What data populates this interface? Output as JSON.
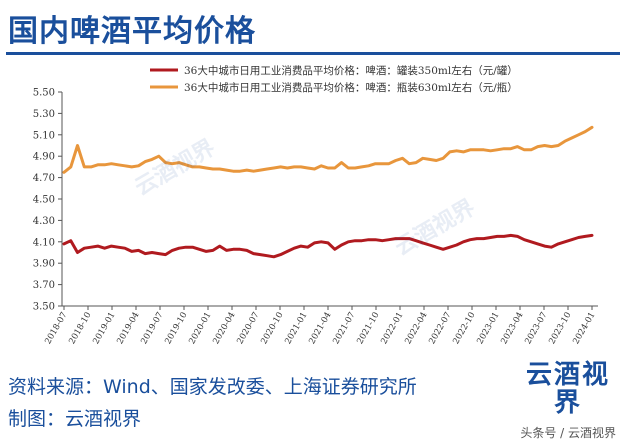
{
  "header": {
    "title": "国内啤酒平均价格"
  },
  "footer": {
    "source": "资料来源：Wind、国家发改委、上海证券研究所",
    "made_by": "制图：云酒视界",
    "logo_text": "云酒视界",
    "credit": "头条号 / 云酒视界"
  },
  "watermark_text": "云酒视界",
  "chart_data": {
    "type": "line",
    "y_ticks": [
      "3.50",
      "3.70",
      "3.90",
      "4.10",
      "4.30",
      "4.50",
      "4.70",
      "4.90",
      "5.10",
      "5.30",
      "5.50"
    ],
    "ylim": [
      3.5,
      5.5
    ],
    "x_ticks": [
      "2018-07",
      "2018-10",
      "2019-01",
      "2019-04",
      "2019-07",
      "2019-10",
      "2020-01",
      "2020-04",
      "2020-07",
      "2020-10",
      "2021-01",
      "2021-04",
      "2021-07",
      "2021-10",
      "2022-01",
      "2022-04",
      "2022-07",
      "2022-10",
      "2023-01",
      "2023-04",
      "2023-07",
      "2023-10",
      "2024-01"
    ],
    "grid": false,
    "legend_position": "top",
    "series": [
      {
        "name": "36大中城市日用工业消费品平均价格：啤酒：罐装350ml左右（元/罐）",
        "color": "#b01a1f",
        "values": [
          4.08,
          4.11,
          4.0,
          4.04,
          4.05,
          4.06,
          4.04,
          4.06,
          4.05,
          4.04,
          4.01,
          4.02,
          3.99,
          4.0,
          3.99,
          3.98,
          4.02,
          4.04,
          4.05,
          4.05,
          4.03,
          4.01,
          4.02,
          4.06,
          4.02,
          4.03,
          4.03,
          4.02,
          3.99,
          3.98,
          3.97,
          3.96,
          3.98,
          4.01,
          4.04,
          4.06,
          4.05,
          4.09,
          4.1,
          4.09,
          4.03,
          4.07,
          4.1,
          4.11,
          4.11,
          4.12,
          4.12,
          4.11,
          4.12,
          4.13,
          4.13,
          4.13,
          4.11,
          4.09,
          4.07,
          4.05,
          4.03,
          4.05,
          4.07,
          4.1,
          4.12,
          4.13,
          4.13,
          4.14,
          4.15,
          4.15,
          4.16,
          4.15,
          4.12,
          4.1,
          4.08,
          4.06,
          4.05,
          4.08,
          4.1,
          4.12,
          4.14,
          4.15,
          4.16
        ]
      },
      {
        "name": "36大中城市日用工业消费品平均价格：啤酒：瓶装630ml左右（元/瓶）",
        "color": "#e8963c",
        "values": [
          4.75,
          4.8,
          5.0,
          4.8,
          4.8,
          4.82,
          4.82,
          4.83,
          4.82,
          4.81,
          4.8,
          4.81,
          4.85,
          4.87,
          4.9,
          4.84,
          4.83,
          4.84,
          4.82,
          4.8,
          4.8,
          4.79,
          4.78,
          4.78,
          4.77,
          4.76,
          4.76,
          4.77,
          4.76,
          4.77,
          4.78,
          4.79,
          4.8,
          4.79,
          4.8,
          4.8,
          4.79,
          4.78,
          4.81,
          4.79,
          4.79,
          4.84,
          4.79,
          4.79,
          4.8,
          4.81,
          4.83,
          4.83,
          4.83,
          4.86,
          4.88,
          4.83,
          4.84,
          4.88,
          4.87,
          4.86,
          4.88,
          4.94,
          4.95,
          4.94,
          4.96,
          4.96,
          4.96,
          4.95,
          4.96,
          4.97,
          4.97,
          4.99,
          4.96,
          4.96,
          4.99,
          5.0,
          4.99,
          5.0,
          5.04,
          5.07,
          5.1,
          5.13,
          5.17
        ]
      }
    ]
  }
}
